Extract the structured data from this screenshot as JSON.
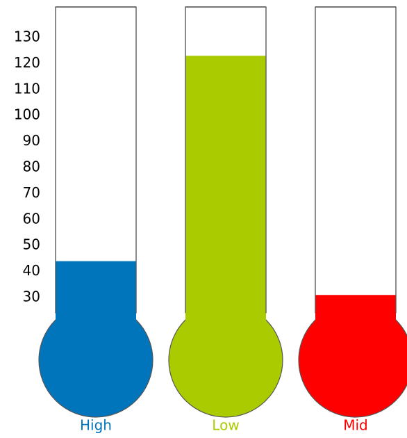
{
  "chart_data": {
    "type": "thermometer",
    "title": "",
    "xlabel": "",
    "ylabel": "",
    "y_ticks": [
      30,
      40,
      50,
      60,
      70,
      80,
      90,
      100,
      110,
      120,
      130
    ],
    "ylim": [
      30,
      138
    ],
    "categories": [
      "High",
      "Low",
      "Mid"
    ],
    "values": [
      44,
      123,
      31
    ],
    "colors": [
      "#0075bb",
      "#aacb00",
      "#ff0000"
    ],
    "grid": false,
    "legend": "none"
  }
}
